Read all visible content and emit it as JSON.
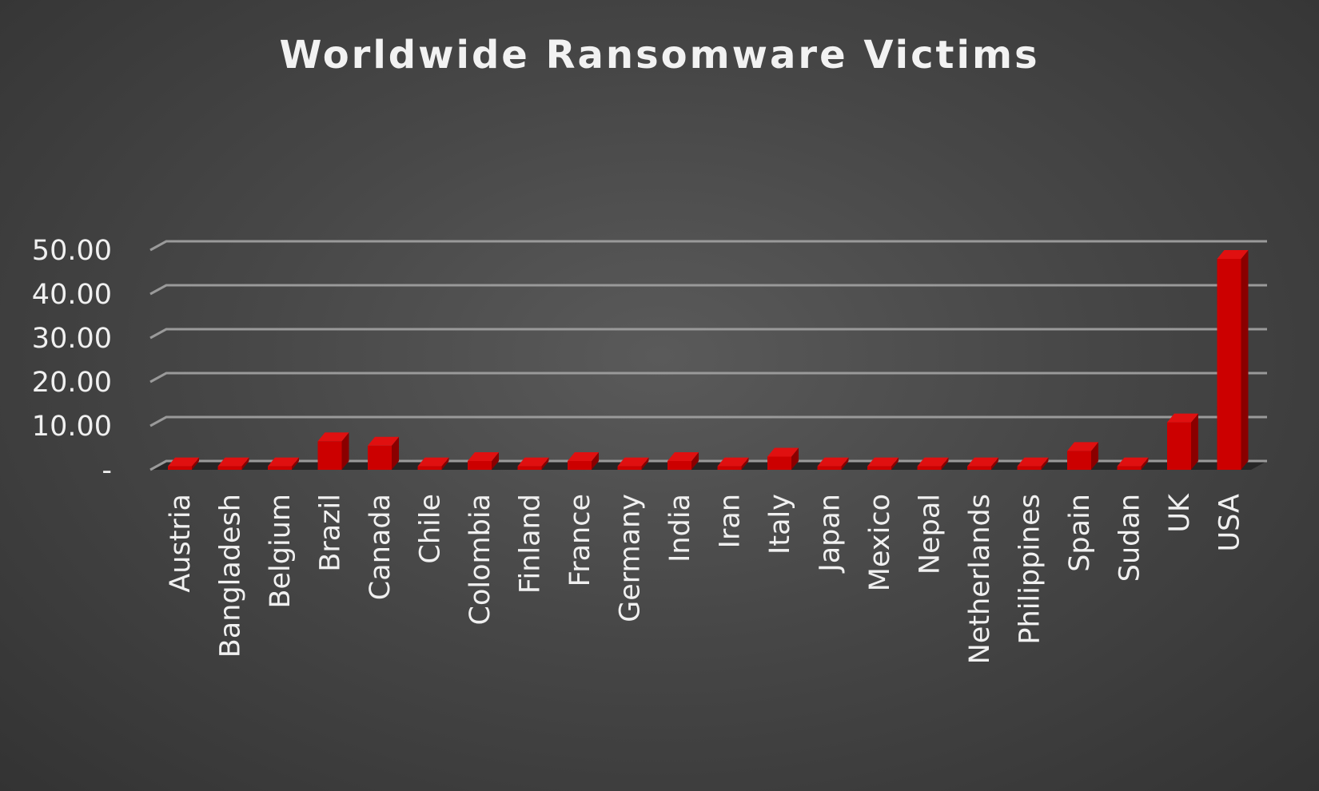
{
  "chart_data": {
    "type": "bar",
    "title": "Worldwide Ransomware Victims",
    "xlabel": "",
    "ylabel": "",
    "categories": [
      "Austria",
      "Bangladesh",
      "Belgium",
      "Brazil",
      "Canada",
      "Chile",
      "Colombia",
      "Finland",
      "France",
      "Germany",
      "India",
      "Iran",
      "Italy",
      "Japan",
      "Mexico",
      "Nepal",
      "Netherlands",
      "Philippines",
      "Spain",
      "Sudan",
      "UK",
      "USA"
    ],
    "values": [
      0.8,
      0.8,
      0.8,
      6.5,
      5.5,
      0.8,
      2.0,
      0.8,
      2.0,
      0.8,
      2.0,
      0.8,
      3.0,
      0.8,
      0.8,
      0.8,
      0.8,
      0.8,
      4.3,
      0.8,
      10.8,
      48.0
    ],
    "ylim": [
      0,
      50
    ],
    "y_ticks": [
      0,
      10,
      20,
      30,
      40,
      50
    ],
    "y_tick_labels": [
      "-",
      "10.00",
      "20.00",
      "30.00",
      "40.00",
      "50.00"
    ],
    "grid": true,
    "legend": "none",
    "style": "3d-column",
    "colors": {
      "bar_front": "#cc0000",
      "bar_top": "#e01010",
      "bar_side": "#8a0000",
      "gridline": "#9a9a9a",
      "floor": "#262626"
    }
  }
}
